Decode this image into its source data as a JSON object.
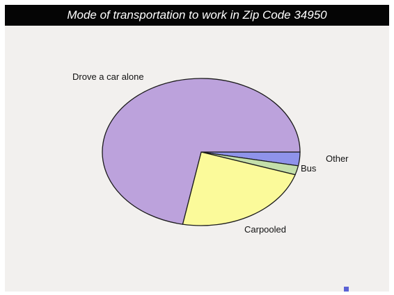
{
  "chart_data": {
    "type": "pie",
    "title": "Mode of transportation to work in Zip Code 34950",
    "slices": [
      {
        "label": "Other",
        "value": 3,
        "color": "#8f93ea"
      },
      {
        "label": "Bus",
        "value": 2,
        "color": "#c4dfaa"
      },
      {
        "label": "Carpooled",
        "value": 23,
        "color": "#fbfa9a"
      },
      {
        "label": "Drove a car alone",
        "value": 72,
        "color": "#bca2dc"
      }
    ],
    "start_angle_deg": 0,
    "direction": "clockwise",
    "legend_color": "#5b62d4"
  }
}
